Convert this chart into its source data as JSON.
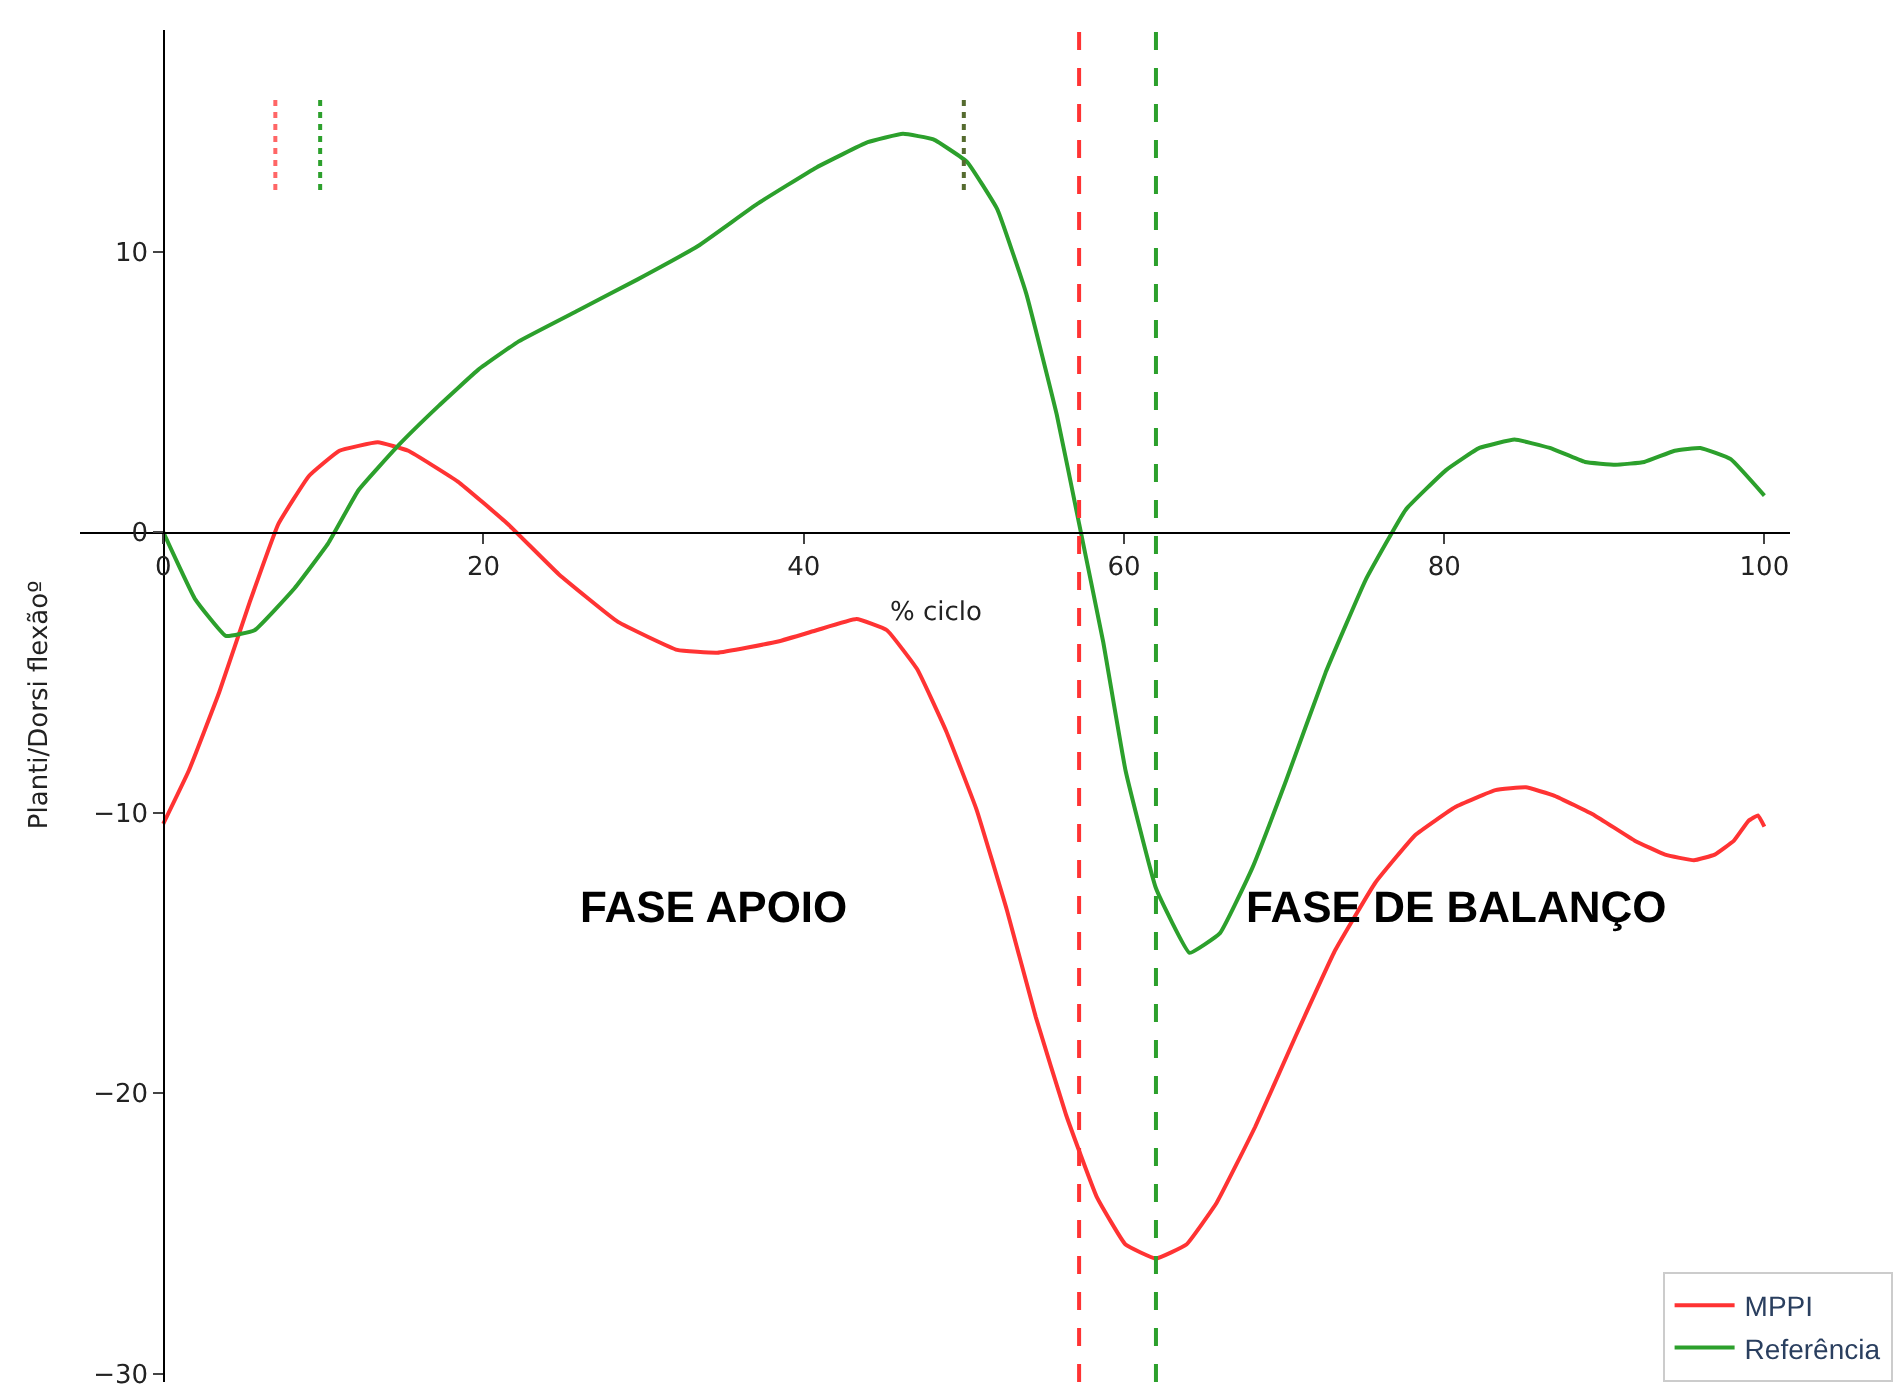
{
  "chart_data": {
    "type": "line",
    "xlabel": "% ciclo",
    "ylabel": "Planti/Dorsi flexãoº",
    "xlim": [
      -5.2,
      101.6
    ],
    "ylim": [
      -30.3,
      17.9
    ],
    "xticks": [
      0,
      20,
      40,
      60,
      80,
      100
    ],
    "yticks": [
      {
        "value": -30,
        "label": "−30"
      },
      {
        "value": -20,
        "label": "−20"
      },
      {
        "value": -10,
        "label": "−10"
      },
      0,
      10
    ],
    "legend": "bottom right",
    "line_style": "solid",
    "marker": "none",
    "series": [
      {
        "name": "MPPI",
        "color": "#ff3333",
        "x": [
          0,
          1.6,
          3.5,
          5.4,
          7.2,
          9.1,
          11,
          13.4,
          15.3,
          18.4,
          21.5,
          24.7,
          28.4,
          32.1,
          34.6,
          38.4,
          40.8,
          43.3,
          45.2,
          47.1,
          48.9,
          50.8,
          52.7,
          54.5,
          56.4,
          58.3,
          60.1,
          62,
          63.9,
          65.8,
          68.2,
          70.7,
          73.2,
          75.7,
          78.2,
          80.7,
          83.2,
          85.1,
          86.9,
          89.4,
          91.9,
          93.8,
          95.6,
          96.9,
          98.1,
          99,
          99.6,
          100
        ],
        "values": [
          -10.4,
          -8.5,
          -5.7,
          -2.5,
          0.3,
          2.0,
          2.9,
          3.2,
          2.9,
          1.8,
          0.3,
          -1.5,
          -3.2,
          -4.2,
          -4.3,
          -3.9,
          -3.5,
          -3.1,
          -3.5,
          -4.9,
          -7.1,
          -9.9,
          -13.5,
          -17.3,
          -20.8,
          -23.7,
          -25.4,
          -25.9,
          -25.4,
          -23.9,
          -21.2,
          -18.0,
          -14.9,
          -12.5,
          -10.8,
          -9.8,
          -9.2,
          -9.1,
          -9.4,
          -10.1,
          -11.0,
          -11.5,
          -11.7,
          -11.5,
          -11.0,
          -10.3,
          -10.1,
          -10.5
        ]
      },
      {
        "name": "Referência",
        "color": "#2ca02c",
        "x": [
          0,
          2,
          3.9,
          5.7,
          8.2,
          10.3,
          12.2,
          14.7,
          17.2,
          19.7,
          22.2,
          25.9,
          29.6,
          33.4,
          37.1,
          40.8,
          44,
          46.2,
          48.1,
          50.2,
          52.1,
          53.9,
          55.8,
          57.2,
          58.7,
          60.1,
          62,
          64.1,
          66,
          68,
          70.1,
          72.6,
          75.1,
          77.6,
          80.1,
          82.2,
          84.4,
          86.6,
          88.8,
          90.7,
          92.5,
          94.4,
          96,
          97.9,
          100
        ],
        "values": [
          0,
          -2.4,
          -3.7,
          -3.5,
          -2.0,
          -0.4,
          1.5,
          3.1,
          4.5,
          5.8,
          6.8,
          7.9,
          9.0,
          10.2,
          11.7,
          13.0,
          13.9,
          14.2,
          14.0,
          13.2,
          11.5,
          8.5,
          4.2,
          0.3,
          -3.9,
          -8.5,
          -12.7,
          -15.0,
          -14.3,
          -12.0,
          -8.9,
          -5.0,
          -1.7,
          0.8,
          2.2,
          3.0,
          3.3,
          3.0,
          2.5,
          2.4,
          2.5,
          2.9,
          3.0,
          2.6,
          1.3
        ]
      },
      {
        "type": "line",
        "line_style": "dotted",
        "color": "#ff6666",
        "x": [
          7,
          7
        ],
        "values": [
          12.2,
          15.6
        ]
      },
      {
        "type": "line",
        "line_style": "dotted",
        "color": "#2ca02c",
        "x": [
          9.8,
          9.8
        ],
        "values": [
          12.2,
          15.6
        ]
      },
      {
        "type": "line",
        "line_style": "dotted",
        "color": "#556b2f",
        "x": [
          50,
          50
        ],
        "values": [
          12.2,
          15.6
        ]
      }
    ],
    "ref_lines": [
      {
        "axis": "x",
        "value": 57.2,
        "color": "#ff3333",
        "line_style": "dashed"
      },
      {
        "axis": "x",
        "value": 62,
        "color": "#2ca02c",
        "line_style": "dashed"
      }
    ],
    "annotations": [
      "FASE APOIO",
      "FASE DE BALANÇO"
    ]
  }
}
